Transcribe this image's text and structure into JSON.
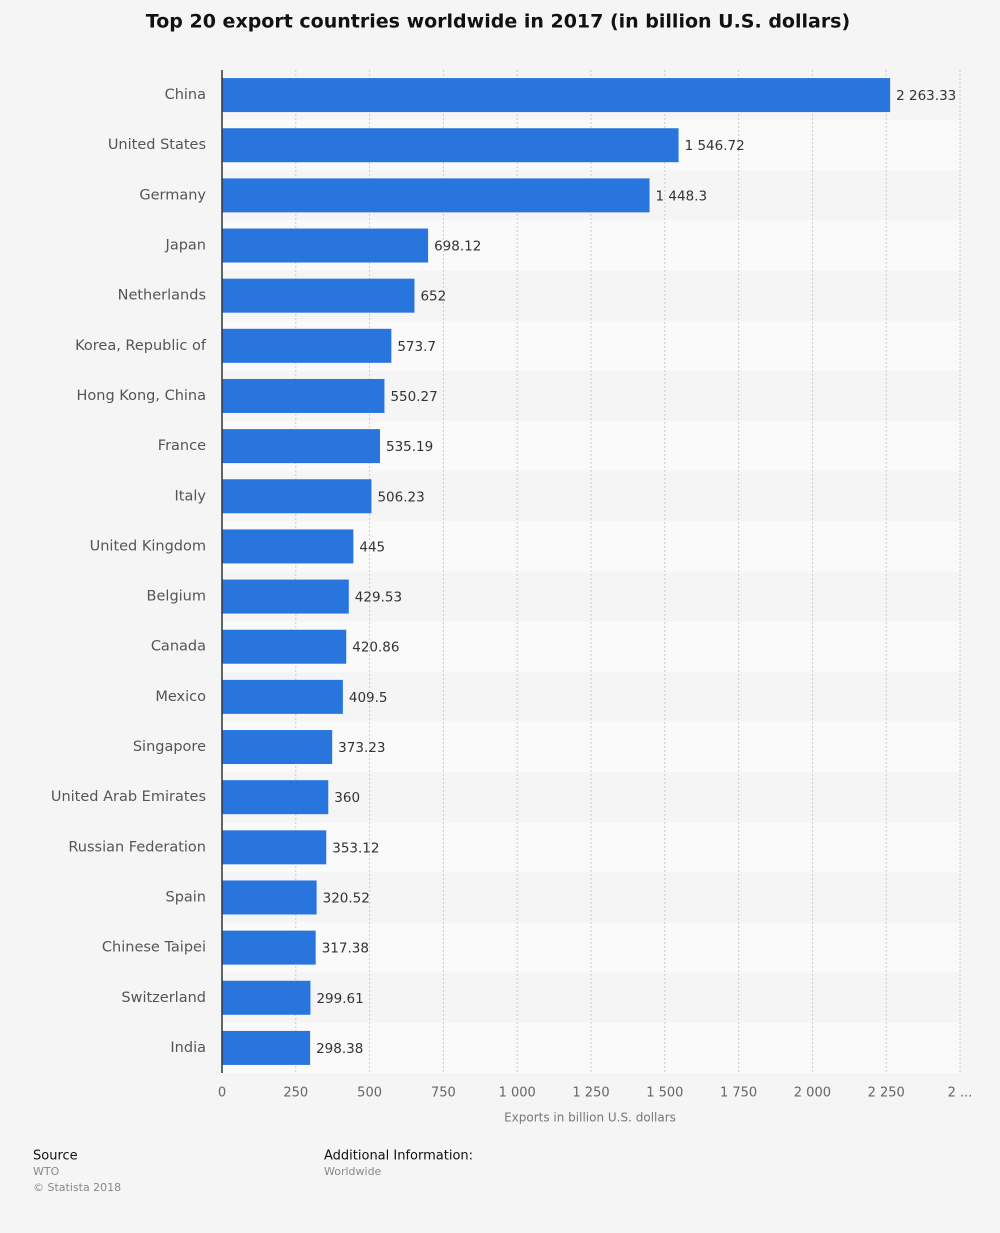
{
  "chart_data": {
    "type": "hbar",
    "title": "Top 20 export countries worldwide in 2017 (in billion U.S. dollars)",
    "x_label": "Exports in billion U.S. dollars",
    "categories": [
      "China",
      "United States",
      "Germany",
      "Japan",
      "Netherlands",
      "Korea, Republic of",
      "Hong Kong, China",
      "France",
      "Italy",
      "United Kingdom",
      "Belgium",
      "Canada",
      "Mexico",
      "Singapore",
      "United Arab Emirates",
      "Russian Federation",
      "Spain",
      "Chinese Taipei",
      "Switzerland",
      "India"
    ],
    "values": [
      2263.33,
      1546.72,
      1448.3,
      698.12,
      652,
      573.7,
      550.27,
      535.19,
      506.23,
      445,
      429.53,
      420.86,
      409.5,
      373.23,
      360,
      353.12,
      320.52,
      317.38,
      299.61,
      298.38
    ],
    "value_labels": [
      "2 263.33",
      "1 546.72",
      "1 448.3",
      "698.12",
      "652",
      "573.7",
      "550.27",
      "535.19",
      "506.23",
      "445",
      "429.53",
      "420.86",
      "409.5",
      "373.23",
      "360",
      "353.12",
      "320.52",
      "317.38",
      "299.61",
      "298.38"
    ],
    "color": "#2876dd",
    "xlim": [
      0,
      2500
    ],
    "xticks": [
      0,
      250,
      500,
      750,
      {
        "value": 1000,
        "label": "1 000"
      },
      {
        "value": 1250,
        "label": "1 250"
      },
      {
        "value": 1500,
        "label": "1 500"
      },
      {
        "value": 1750,
        "label": "1 750"
      },
      {
        "value": 2000,
        "label": "2 000"
      },
      {
        "value": 2250,
        "label": "2 250"
      },
      {
        "value": 2500,
        "label": "2 ..."
      }
    ],
    "grid": true
  },
  "footer": {
    "source_title": "Source",
    "source": "WTO",
    "copyright": "© Statista 2018",
    "info_title": "Additional Information:",
    "info": "Worldwide"
  }
}
